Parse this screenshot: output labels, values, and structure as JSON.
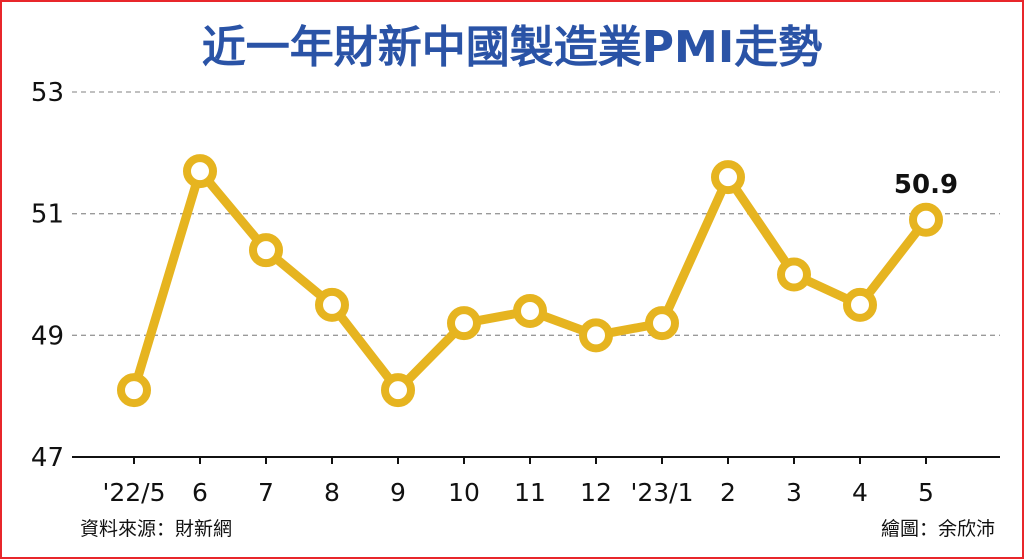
{
  "chart_data": {
    "type": "line",
    "title": "近一年財新中國製造業PMI走勢",
    "categories": [
      "'22/5",
      "6",
      "7",
      "8",
      "9",
      "10",
      "11",
      "12",
      "'23/1",
      "2",
      "3",
      "4",
      "5"
    ],
    "series": [
      {
        "values": [
          48.1,
          51.7,
          50.4,
          49.5,
          48.1,
          49.2,
          49.4,
          49.0,
          49.2,
          51.6,
          50.0,
          49.5,
          50.9
        ]
      }
    ],
    "yticks": [
      "53",
      "51",
      "49",
      "47"
    ],
    "ylim": [
      47,
      53
    ],
    "grid": true,
    "annotations": [
      {
        "category": "5",
        "text": "50.9"
      }
    ],
    "line_color": "#e6b420",
    "marker_fill": "#ffffff"
  },
  "footer": {
    "source": "資料來源：財新網",
    "credit": "繪圖：余欣沛"
  },
  "colors": {
    "title": "#2a53a6",
    "frame": "#e8262b",
    "grid": "#9a9a9a"
  }
}
